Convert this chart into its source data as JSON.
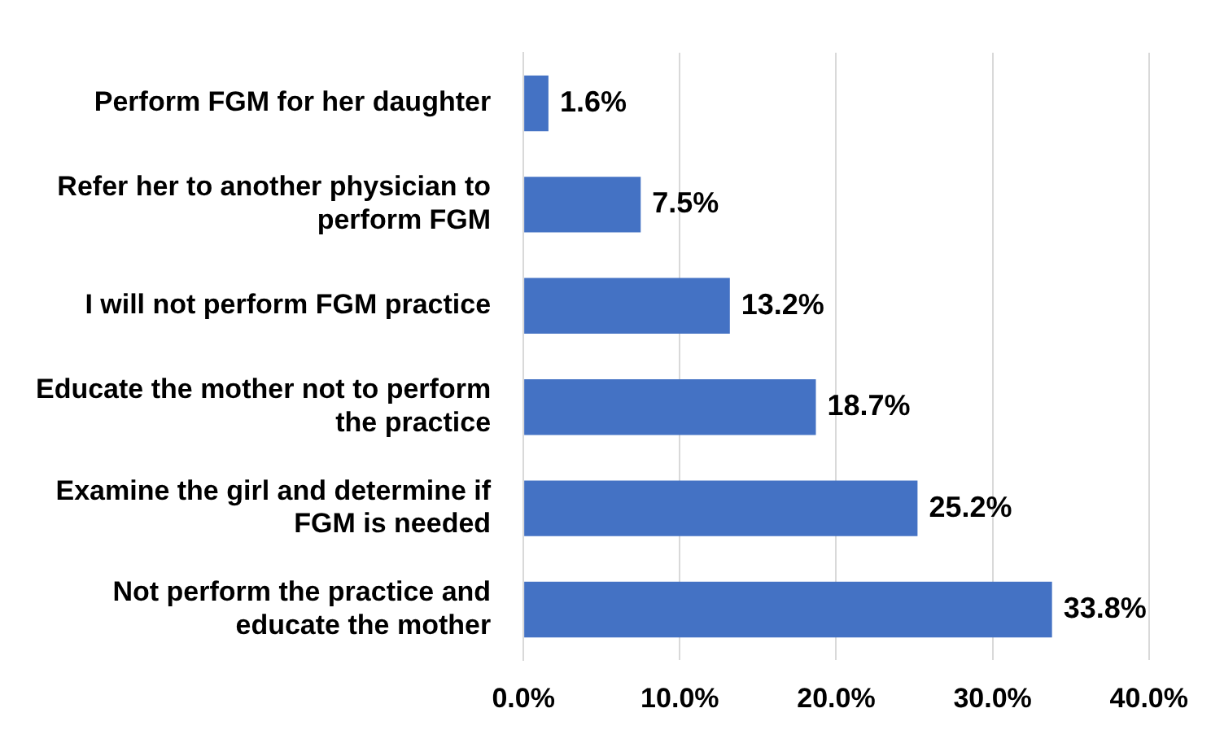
{
  "chart_data": {
    "type": "bar",
    "orientation": "horizontal",
    "categories": [
      "Perform FGM for her daughter",
      "Refer her to another physician to perform FGM",
      "I will not perform FGM practice",
      "Educate the mother not to perform the practice",
      "Examine the girl and determine if FGM is needed",
      "Not perform the practice and educate the mother"
    ],
    "values": [
      1.6,
      7.5,
      13.2,
      18.7,
      25.2,
      33.8
    ],
    "value_labels": [
      "1.6%",
      "7.5%",
      "13.2%",
      "18.7%",
      "25.2%",
      "33.8%"
    ],
    "color": "#4472c4",
    "xlim": [
      0,
      40
    ],
    "xticks": [
      {
        "value": 0,
        "label": "0.0%"
      },
      {
        "value": 10,
        "label": "10.0%"
      },
      {
        "value": 20,
        "label": "20.0%"
      },
      {
        "value": 30,
        "label": "30.0%"
      },
      {
        "value": 40,
        "label": "40.0%"
      }
    ],
    "grid": "x",
    "legend": false
  }
}
